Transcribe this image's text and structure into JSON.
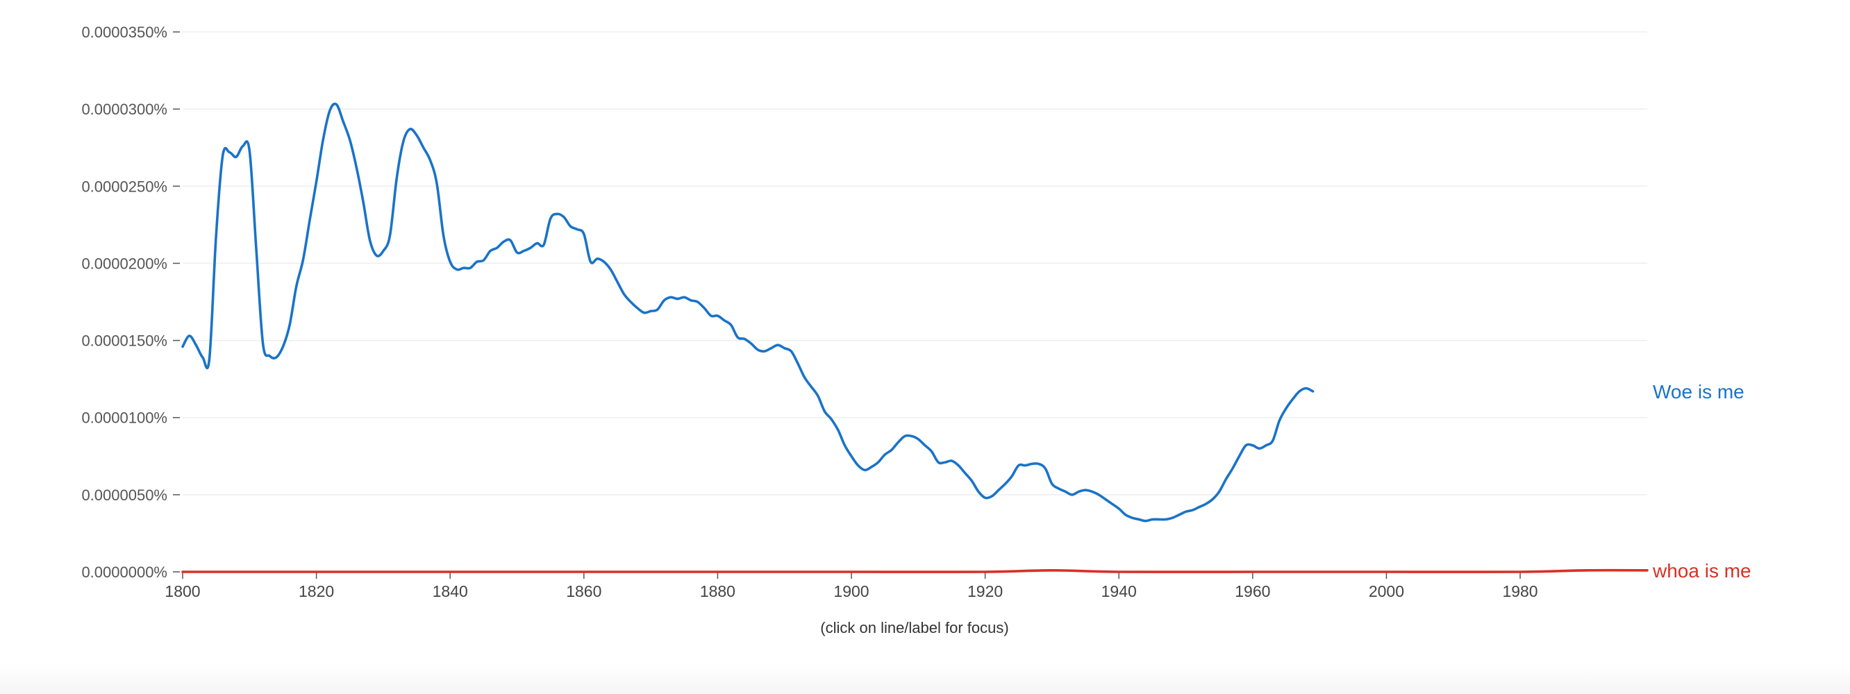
{
  "hint": "(click on line/label for focus)",
  "chart_data": {
    "type": "line",
    "title": "",
    "xlabel": "",
    "ylabel": "",
    "xlim": [
      1800,
      2019
    ],
    "ylim": [
      0,
      3.5e-05
    ],
    "y_tick_values": [
      0,
      5e-06,
      1e-05,
      1.5e-05,
      2e-05,
      2.5e-05,
      3e-05,
      3.5e-05
    ],
    "y_tick_labels": [
      "0.0000000%",
      "0.0000050%",
      "0.0000100%",
      "0.0000150%",
      "0.0000200%",
      "0.0000250%",
      "0.0000300%",
      "0.0000350%"
    ],
    "x_tick_labels": [
      "1800",
      "1820",
      "1840",
      "1860",
      "1880",
      "1900",
      "1920",
      "1940",
      "1960",
      "2000",
      "1980"
    ],
    "grid": true,
    "legend": "inline labels at line ends",
    "series": [
      {
        "name": "Woe is me",
        "color": "#1a73c8",
        "points": [
          [
            1800,
            1.46e-05
          ],
          [
            1801,
            1.53e-05
          ],
          [
            1802,
            1.47e-05
          ],
          [
            1803,
            1.39e-05
          ],
          [
            1804,
            1.38e-05
          ],
          [
            1805,
            2.18e-05
          ],
          [
            1806,
            2.7e-05
          ],
          [
            1807,
            2.72e-05
          ],
          [
            1808,
            2.69e-05
          ],
          [
            1809,
            2.76e-05
          ],
          [
            1810,
            2.73e-05
          ],
          [
            1811,
            2.1e-05
          ],
          [
            1812,
            1.48e-05
          ],
          [
            1813,
            1.4e-05
          ],
          [
            1814,
            1.39e-05
          ],
          [
            1815,
            1.46e-05
          ],
          [
            1816,
            1.6e-05
          ],
          [
            1817,
            1.85e-05
          ],
          [
            1818,
            2.02e-05
          ],
          [
            1819,
            2.28e-05
          ],
          [
            1820,
            2.53e-05
          ],
          [
            1821,
            2.8e-05
          ],
          [
            1822,
            2.99e-05
          ],
          [
            1823,
            3.03e-05
          ],
          [
            1824,
            2.92e-05
          ],
          [
            1825,
            2.8e-05
          ],
          [
            1826,
            2.62e-05
          ],
          [
            1827,
            2.4e-05
          ],
          [
            1828,
            2.15e-05
          ],
          [
            1829,
            2.05e-05
          ],
          [
            1830,
            2.08e-05
          ],
          [
            1831,
            2.18e-05
          ],
          [
            1832,
            2.55e-05
          ],
          [
            1833,
            2.79e-05
          ],
          [
            1834,
            2.87e-05
          ],
          [
            1835,
            2.83e-05
          ],
          [
            1836,
            2.75e-05
          ],
          [
            1837,
            2.67e-05
          ],
          [
            1838,
            2.52e-05
          ],
          [
            1839,
            2.18e-05
          ],
          [
            1840,
            2.01e-05
          ],
          [
            1841,
            1.96e-05
          ],
          [
            1842,
            1.97e-05
          ],
          [
            1843,
            1.97e-05
          ],
          [
            1844,
            2.01e-05
          ],
          [
            1845,
            2.02e-05
          ],
          [
            1846,
            2.08e-05
          ],
          [
            1847,
            2.1e-05
          ],
          [
            1848,
            2.14e-05
          ],
          [
            1849,
            2.15e-05
          ],
          [
            1850,
            2.07e-05
          ],
          [
            1851,
            2.08e-05
          ],
          [
            1852,
            2.1e-05
          ],
          [
            1853,
            2.13e-05
          ],
          [
            1854,
            2.12e-05
          ],
          [
            1855,
            2.29e-05
          ],
          [
            1856,
            2.32e-05
          ],
          [
            1857,
            2.3e-05
          ],
          [
            1858,
            2.24e-05
          ],
          [
            1859,
            2.22e-05
          ],
          [
            1860,
            2.19e-05
          ],
          [
            1861,
            2.01e-05
          ],
          [
            1862,
            2.03e-05
          ],
          [
            1863,
            2.01e-05
          ],
          [
            1864,
            1.96e-05
          ],
          [
            1865,
            1.88e-05
          ],
          [
            1866,
            1.8e-05
          ],
          [
            1867,
            1.75e-05
          ],
          [
            1868,
            1.71e-05
          ],
          [
            1869,
            1.68e-05
          ],
          [
            1870,
            1.69e-05
          ],
          [
            1871,
            1.7e-05
          ],
          [
            1872,
            1.76e-05
          ],
          [
            1873,
            1.78e-05
          ],
          [
            1874,
            1.77e-05
          ],
          [
            1875,
            1.78e-05
          ],
          [
            1876,
            1.76e-05
          ],
          [
            1877,
            1.75e-05
          ],
          [
            1878,
            1.71e-05
          ],
          [
            1879,
            1.66e-05
          ],
          [
            1880,
            1.66e-05
          ],
          [
            1881,
            1.63e-05
          ],
          [
            1882,
            1.6e-05
          ],
          [
            1883,
            1.52e-05
          ],
          [
            1884,
            1.51e-05
          ],
          [
            1885,
            1.48e-05
          ],
          [
            1886,
            1.44e-05
          ],
          [
            1887,
            1.43e-05
          ],
          [
            1888,
            1.45e-05
          ],
          [
            1889,
            1.47e-05
          ],
          [
            1890,
            1.45e-05
          ],
          [
            1891,
            1.43e-05
          ],
          [
            1892,
            1.35e-05
          ],
          [
            1893,
            1.26e-05
          ],
          [
            1894,
            1.2e-05
          ],
          [
            1895,
            1.14e-05
          ],
          [
            1896,
            1.04e-05
          ],
          [
            1897,
            9.9e-06
          ],
          [
            1898,
            9.2e-06
          ],
          [
            1899,
            8.2e-06
          ],
          [
            1900,
            7.5e-06
          ],
          [
            1901,
            6.9e-06
          ],
          [
            1902,
            6.6e-06
          ],
          [
            1903,
            6.8e-06
          ],
          [
            1904,
            7.1e-06
          ],
          [
            1905,
            7.6e-06
          ],
          [
            1906,
            7.9e-06
          ],
          [
            1907,
            8.4e-06
          ],
          [
            1908,
            8.8e-06
          ],
          [
            1909,
            8.8e-06
          ],
          [
            1910,
            8.6e-06
          ],
          [
            1911,
            8.2e-06
          ],
          [
            1912,
            7.8e-06
          ],
          [
            1913,
            7.1e-06
          ],
          [
            1914,
            7.1e-06
          ],
          [
            1915,
            7.2e-06
          ],
          [
            1916,
            6.9e-06
          ],
          [
            1917,
            6.4e-06
          ],
          [
            1918,
            5.9e-06
          ],
          [
            1919,
            5.2e-06
          ],
          [
            1920,
            4.8e-06
          ],
          [
            1921,
            4.9e-06
          ],
          [
            1922,
            5.3e-06
          ],
          [
            1923,
            5.7e-06
          ],
          [
            1924,
            6.2e-06
          ],
          [
            1925,
            6.9e-06
          ],
          [
            1926,
            6.9e-06
          ],
          [
            1927,
            7e-06
          ],
          [
            1928,
            7e-06
          ],
          [
            1929,
            6.7e-06
          ],
          [
            1930,
            5.7e-06
          ],
          [
            1931,
            5.4e-06
          ],
          [
            1932,
            5.2e-06
          ],
          [
            1933,
            5e-06
          ],
          [
            1934,
            5.2e-06
          ],
          [
            1935,
            5.3e-06
          ],
          [
            1936,
            5.2e-06
          ],
          [
            1937,
            5e-06
          ],
          [
            1938,
            4.7e-06
          ],
          [
            1939,
            4.4e-06
          ],
          [
            1940,
            4.1e-06
          ],
          [
            1941,
            3.7e-06
          ],
          [
            1942,
            3.5e-06
          ],
          [
            1943,
            3.4e-06
          ],
          [
            1944,
            3.3e-06
          ],
          [
            1945,
            3.4e-06
          ],
          [
            1946,
            3.4e-06
          ],
          [
            1947,
            3.4e-06
          ],
          [
            1948,
            3.5e-06
          ],
          [
            1949,
            3.7e-06
          ],
          [
            1950,
            3.9e-06
          ],
          [
            1951,
            4e-06
          ],
          [
            1952,
            4.2e-06
          ],
          [
            1953,
            4.4e-06
          ],
          [
            1954,
            4.7e-06
          ],
          [
            1955,
            5.2e-06
          ],
          [
            1956,
            6e-06
          ],
          [
            1957,
            6.7e-06
          ],
          [
            1958,
            7.5e-06
          ],
          [
            1959,
            8.2e-06
          ],
          [
            1960,
            8.2e-06
          ],
          [
            1961,
            8e-06
          ],
          [
            1962,
            8.2e-06
          ],
          [
            1963,
            8.5e-06
          ],
          [
            1964,
            9.8e-06
          ],
          [
            1965,
            1.06e-05
          ],
          [
            1966,
            1.12e-05
          ],
          [
            1967,
            1.17e-05
          ],
          [
            1968,
            1.19e-05
          ],
          [
            1969,
            1.17e-05
          ]
        ]
      },
      {
        "name": "whoa is me",
        "color": "#d93025",
        "points": [
          [
            1800,
            0.0
          ],
          [
            1820,
            0.0
          ],
          [
            1840,
            0.0
          ],
          [
            1860,
            0.0
          ],
          [
            1880,
            0.0
          ],
          [
            1900,
            0.0
          ],
          [
            1920,
            0.0
          ],
          [
            1930,
            1e-07
          ],
          [
            1940,
            0.0
          ],
          [
            1960,
            0.0
          ],
          [
            1980,
            0.0
          ],
          [
            2000,
            0.0
          ],
          [
            2010,
            1e-07
          ],
          [
            2019,
            1e-07
          ]
        ]
      }
    ]
  }
}
